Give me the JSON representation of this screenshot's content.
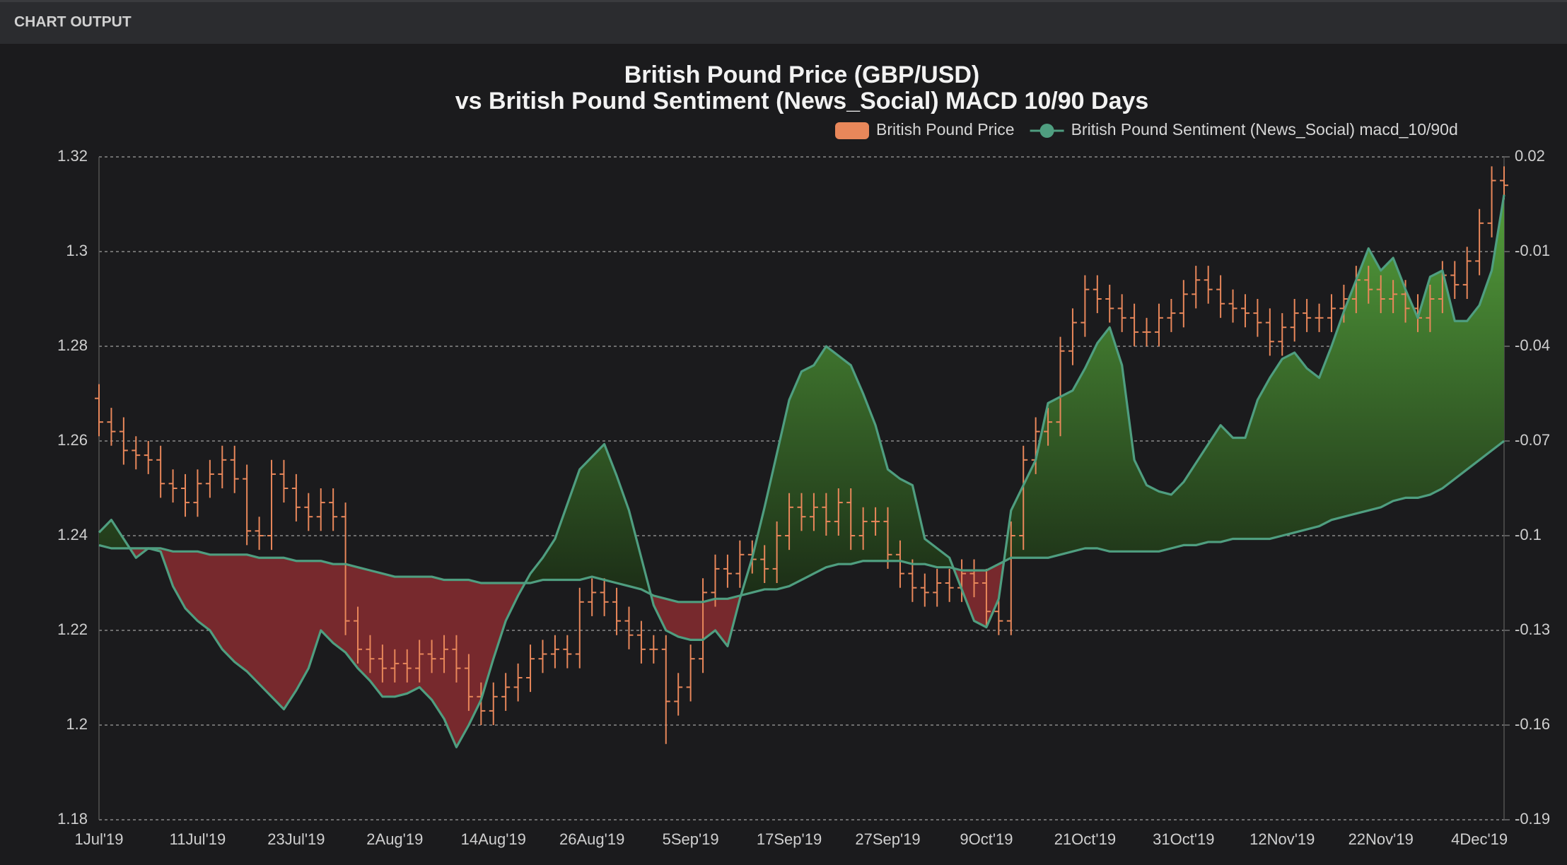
{
  "header": {
    "title": "CHART OUTPUT"
  },
  "chart_data": {
    "type": "ohlc",
    "title": "British Pound Price (GBP/USD)",
    "subtitle": "vs British Pound Sentiment (News_Social) MACD 10/90 Days",
    "categories": [
      "1Jul'19",
      null,
      null,
      null,
      null,
      null,
      null,
      null,
      "11Jul'19",
      null,
      null,
      null,
      null,
      null,
      null,
      null,
      "23Jul'19",
      null,
      null,
      null,
      null,
      null,
      null,
      null,
      "2Aug'19",
      null,
      null,
      null,
      null,
      null,
      null,
      null,
      "14Aug'19",
      null,
      null,
      null,
      null,
      null,
      null,
      null,
      "26Aug'19",
      null,
      null,
      null,
      null,
      null,
      null,
      null,
      "5Sep'19",
      null,
      null,
      null,
      null,
      null,
      null,
      null,
      "17Sep'19",
      null,
      null,
      null,
      null,
      null,
      null,
      null,
      "27Sep'19",
      null,
      null,
      null,
      null,
      null,
      null,
      null,
      "9Oct'19",
      null,
      null,
      null,
      null,
      null,
      null,
      null,
      "21Oct'19",
      null,
      null,
      null,
      null,
      null,
      null,
      null,
      "31Oct'19",
      null,
      null,
      null,
      null,
      null,
      null,
      null,
      "12Nov'19",
      null,
      null,
      null,
      null,
      null,
      null,
      null,
      "22Nov'19",
      null,
      null,
      null,
      null,
      null,
      null,
      null,
      "4Dec'19",
      null,
      null
    ],
    "series": [
      {
        "name": "British Pound Price",
        "type": "ohlc",
        "color": "#e8875a",
        "open": [
          1.269,
          1.264,
          1.262,
          1.258,
          1.257,
          1.256,
          1.251,
          1.25,
          1.247,
          1.251,
          1.253,
          1.256,
          1.252,
          1.241,
          1.24,
          1.253,
          1.25,
          1.246,
          1.244,
          1.247,
          1.244,
          1.222,
          1.216,
          1.214,
          1.212,
          1.213,
          1.212,
          1.215,
          1.214,
          1.216,
          1.212,
          1.206,
          1.203,
          1.206,
          1.208,
          1.21,
          1.214,
          1.215,
          1.216,
          1.215,
          1.226,
          1.228,
          1.226,
          1.222,
          1.219,
          1.216,
          1.216,
          1.205,
          1.208,
          1.214,
          1.228,
          1.233,
          1.232,
          1.236,
          1.235,
          1.233,
          1.24,
          1.246,
          1.244,
          1.246,
          1.243,
          1.247,
          1.24,
          1.243,
          1.243,
          1.236,
          1.232,
          1.229,
          1.228,
          1.23,
          1.229,
          1.232,
          1.23,
          1.224,
          1.222,
          1.24,
          1.256,
          1.262,
          1.264,
          1.279,
          1.285,
          1.292,
          1.29,
          1.288,
          1.286,
          1.283,
          1.283,
          1.286,
          1.287,
          1.291,
          1.294,
          1.292,
          1.289,
          1.288,
          1.287,
          1.285,
          1.281,
          1.284,
          1.287,
          1.286,
          1.286,
          1.288,
          1.29,
          1.294,
          1.292,
          1.29,
          1.291,
          1.288,
          1.286,
          1.29,
          1.295,
          1.293,
          1.298,
          1.306,
          1.315
        ],
        "high": [
          1.272,
          1.267,
          1.265,
          1.261,
          1.26,
          1.259,
          1.254,
          1.253,
          1.254,
          1.256,
          1.259,
          1.259,
          1.255,
          1.244,
          1.256,
          1.256,
          1.253,
          1.249,
          1.25,
          1.25,
          1.247,
          1.225,
          1.219,
          1.217,
          1.216,
          1.216,
          1.218,
          1.218,
          1.219,
          1.219,
          1.215,
          1.209,
          1.209,
          1.211,
          1.213,
          1.217,
          1.218,
          1.219,
          1.219,
          1.229,
          1.231,
          1.231,
          1.229,
          1.225,
          1.222,
          1.219,
          1.219,
          1.211,
          1.217,
          1.231,
          1.236,
          1.236,
          1.239,
          1.239,
          1.238,
          1.243,
          1.249,
          1.249,
          1.249,
          1.249,
          1.25,
          1.25,
          1.246,
          1.246,
          1.246,
          1.239,
          1.235,
          1.232,
          1.233,
          1.233,
          1.235,
          1.235,
          1.233,
          1.227,
          1.243,
          1.259,
          1.265,
          1.267,
          1.282,
          1.288,
          1.295,
          1.295,
          1.293,
          1.291,
          1.289,
          1.286,
          1.289,
          1.29,
          1.294,
          1.297,
          1.297,
          1.295,
          1.292,
          1.291,
          1.29,
          1.288,
          1.287,
          1.29,
          1.29,
          1.289,
          1.291,
          1.293,
          1.297,
          1.297,
          1.295,
          1.294,
          1.294,
          1.291,
          1.293,
          1.298,
          1.298,
          1.301,
          1.309,
          1.318,
          1.318
        ],
        "low": [
          1.261,
          1.259,
          1.255,
          1.254,
          1.253,
          1.248,
          1.247,
          1.244,
          1.244,
          1.248,
          1.25,
          1.249,
          1.238,
          1.237,
          1.237,
          1.247,
          1.243,
          1.241,
          1.241,
          1.241,
          1.219,
          1.213,
          1.211,
          1.209,
          1.209,
          1.209,
          1.209,
          1.211,
          1.211,
          1.209,
          1.203,
          1.2,
          1.2,
          1.203,
          1.205,
          1.207,
          1.211,
          1.212,
          1.212,
          1.212,
          1.223,
          1.223,
          1.219,
          1.216,
          1.213,
          1.213,
          1.196,
          1.202,
          1.205,
          1.211,
          1.225,
          1.229,
          1.229,
          1.232,
          1.23,
          1.23,
          1.237,
          1.241,
          1.241,
          1.24,
          1.24,
          1.237,
          1.237,
          1.24,
          1.233,
          1.229,
          1.226,
          1.225,
          1.225,
          1.226,
          1.226,
          1.227,
          1.221,
          1.219,
          1.219,
          1.237,
          1.253,
          1.259,
          1.261,
          1.276,
          1.282,
          1.287,
          1.285,
          1.283,
          1.28,
          1.28,
          1.28,
          1.283,
          1.284,
          1.288,
          1.289,
          1.286,
          1.285,
          1.284,
          1.282,
          1.278,
          1.278,
          1.281,
          1.283,
          1.283,
          1.283,
          1.285,
          1.287,
          1.289,
          1.287,
          1.287,
          1.285,
          1.283,
          1.283,
          1.287,
          1.29,
          1.29,
          1.295,
          1.303,
          1.311
        ],
        "close": [
          1.264,
          1.262,
          1.258,
          1.257,
          1.256,
          1.251,
          1.25,
          1.247,
          1.251,
          1.253,
          1.256,
          1.252,
          1.241,
          1.24,
          1.253,
          1.25,
          1.246,
          1.244,
          1.247,
          1.244,
          1.222,
          1.216,
          1.214,
          1.212,
          1.213,
          1.212,
          1.215,
          1.214,
          1.216,
          1.212,
          1.206,
          1.203,
          1.206,
          1.208,
          1.21,
          1.214,
          1.215,
          1.216,
          1.215,
          1.226,
          1.228,
          1.226,
          1.222,
          1.219,
          1.216,
          1.216,
          1.205,
          1.208,
          1.214,
          1.228,
          1.233,
          1.232,
          1.236,
          1.235,
          1.233,
          1.24,
          1.246,
          1.244,
          1.246,
          1.243,
          1.247,
          1.24,
          1.243,
          1.243,
          1.236,
          1.232,
          1.229,
          1.228,
          1.23,
          1.229,
          1.232,
          1.23,
          1.224,
          1.222,
          1.24,
          1.256,
          1.262,
          1.264,
          1.279,
          1.285,
          1.292,
          1.29,
          1.288,
          1.286,
          1.283,
          1.283,
          1.286,
          1.287,
          1.291,
          1.294,
          1.292,
          1.289,
          1.288,
          1.287,
          1.285,
          1.281,
          1.284,
          1.287,
          1.286,
          1.286,
          1.288,
          1.29,
          1.294,
          1.292,
          1.29,
          1.291,
          1.288,
          1.286,
          1.29,
          1.295,
          1.293,
          1.298,
          1.306,
          1.315,
          1.314
        ]
      },
      {
        "name": "British Pound Sentiment (News_Social) macd_10/90d",
        "type": "line",
        "axis": "y2",
        "color": "#4f9e80",
        "values": [
          -0.099,
          -0.095,
          -0.101,
          -0.107,
          -0.104,
          -0.105,
          -0.116,
          -0.123,
          -0.127,
          -0.13,
          -0.136,
          -0.14,
          -0.143,
          -0.147,
          -0.151,
          -0.155,
          -0.149,
          -0.142,
          -0.13,
          -0.134,
          -0.137,
          -0.142,
          -0.146,
          -0.151,
          -0.151,
          -0.15,
          -0.148,
          -0.152,
          -0.158,
          -0.167,
          -0.16,
          -0.152,
          -0.139,
          -0.127,
          -0.119,
          -0.112,
          -0.107,
          -0.101,
          -0.09,
          -0.079,
          -0.075,
          -0.071,
          -0.081,
          -0.092,
          -0.107,
          -0.122,
          -0.13,
          -0.132,
          -0.133,
          -0.133,
          -0.13,
          -0.135,
          -0.12,
          -0.107,
          -0.091,
          -0.074,
          -0.057,
          -0.048,
          -0.046,
          -0.04,
          -0.043,
          -0.046,
          -0.055,
          -0.065,
          -0.079,
          -0.082,
          -0.084,
          -0.101,
          -0.104,
          -0.107,
          -0.117,
          -0.127,
          -0.129,
          -0.12,
          -0.092,
          -0.084,
          -0.076,
          -0.058,
          -0.056,
          -0.054,
          -0.047,
          -0.039,
          -0.034,
          -0.046,
          -0.076,
          -0.084,
          -0.086,
          -0.087,
          -0.083,
          -0.077,
          -0.071,
          -0.065,
          -0.069,
          -0.069,
          -0.057,
          -0.05,
          -0.044,
          -0.042,
          -0.047,
          -0.05,
          -0.04,
          -0.029,
          -0.019,
          -0.009,
          -0.016,
          -0.012,
          -0.022,
          -0.031,
          -0.018,
          -0.016,
          -0.032,
          -0.032,
          -0.027,
          -0.016,
          0.008
        ]
      },
      {
        "type": "line",
        "axis": "y2",
        "color": "#4f9e80",
        "values": [
          -0.103,
          -0.104,
          -0.104,
          -0.104,
          -0.104,
          -0.104,
          -0.105,
          -0.105,
          -0.105,
          -0.106,
          -0.106,
          -0.106,
          -0.106,
          -0.107,
          -0.107,
          -0.107,
          -0.108,
          -0.108,
          -0.108,
          -0.109,
          -0.109,
          -0.11,
          -0.111,
          -0.112,
          -0.113,
          -0.113,
          -0.113,
          -0.113,
          -0.114,
          -0.114,
          -0.114,
          -0.115,
          -0.115,
          -0.115,
          -0.115,
          -0.115,
          -0.114,
          -0.114,
          -0.114,
          -0.114,
          -0.113,
          -0.114,
          -0.115,
          -0.116,
          -0.117,
          -0.119,
          -0.12,
          -0.121,
          -0.121,
          -0.121,
          -0.12,
          -0.12,
          -0.119,
          -0.118,
          -0.117,
          -0.117,
          -0.116,
          -0.114,
          -0.112,
          -0.11,
          -0.109,
          -0.109,
          -0.108,
          -0.108,
          -0.108,
          -0.108,
          -0.109,
          -0.109,
          -0.11,
          -0.11,
          -0.111,
          -0.111,
          -0.111,
          -0.109,
          -0.107,
          -0.107,
          -0.107,
          -0.107,
          -0.106,
          -0.105,
          -0.104,
          -0.104,
          -0.105,
          -0.105,
          -0.105,
          -0.105,
          -0.105,
          -0.104,
          -0.103,
          -0.103,
          -0.102,
          -0.102,
          -0.101,
          -0.101,
          -0.101,
          -0.101,
          -0.1,
          -0.099,
          -0.098,
          -0.097,
          -0.095,
          -0.094,
          -0.093,
          -0.092,
          -0.091,
          -0.089,
          -0.088,
          -0.088,
          -0.087,
          -0.085,
          -0.082,
          -0.079,
          -0.076,
          -0.073,
          -0.07
        ]
      }
    ],
    "fill_above": "#58a83e",
    "fill_below": "#77292d",
    "ylim": [
      1.18,
      1.32
    ],
    "yticks": [
      1.18,
      1.2,
      1.22,
      1.24,
      1.26,
      1.28,
      1.3,
      1.32
    ],
    "y2lim": [
      -0.19,
      0.02
    ],
    "y2ticks": [
      0.02,
      -0.01,
      -0.04,
      -0.07,
      -0.1,
      -0.13,
      -0.16,
      -0.19
    ],
    "grid": true,
    "legend": "top-right"
  }
}
